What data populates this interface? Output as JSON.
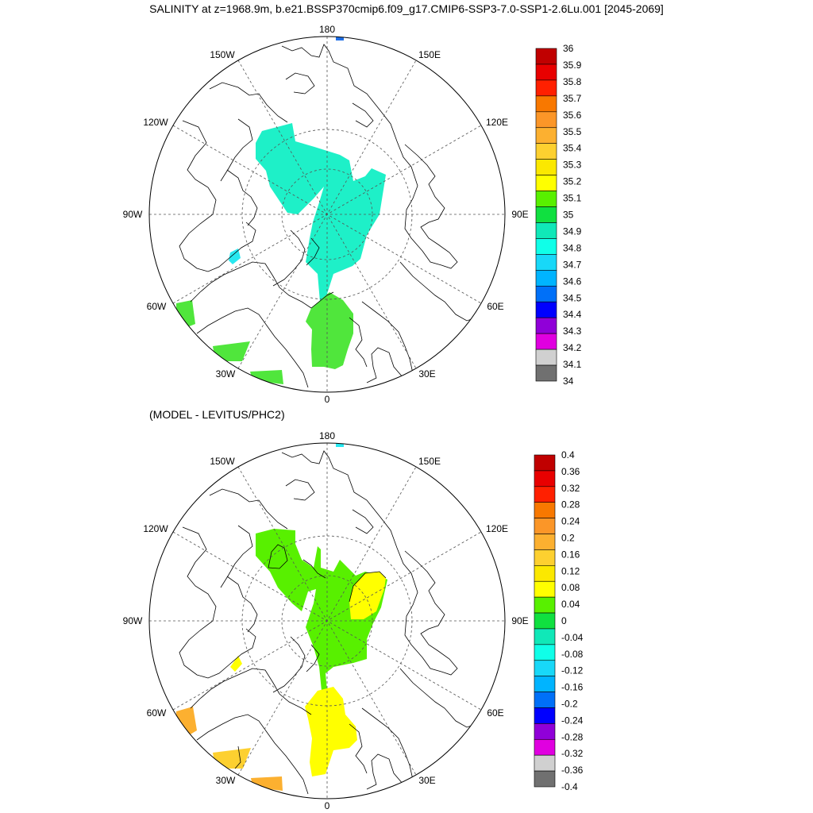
{
  "title": "SALINITY at z=1968.9m, b.e21.BSSP370cmip6.f09_g17.CMIP6-SSP3-7.0-SSP1-2.6Lu.001 [2045-2069]",
  "subtitle": "(MODEL - LEVITUS/PHC2)",
  "longitude_labels": {
    "lon_180": "180",
    "lon_150W": "150W",
    "lon_150E": "150E",
    "lon_120W": "120W",
    "lon_120E": "120E",
    "lon_90W": "90W",
    "lon_90E": "90E",
    "lon_60W": "60W",
    "lon_60E": "60E",
    "lon_30W": "30W",
    "lon_30E": "30E",
    "lon_0": "0"
  },
  "colorbar_top": {
    "labels": [
      "36",
      "35.9",
      "35.8",
      "35.7",
      "35.6",
      "35.5",
      "35.4",
      "35.3",
      "35.2",
      "35.1",
      "35",
      "34.9",
      "34.8",
      "34.7",
      "34.6",
      "34.5",
      "34.4",
      "34.3",
      "34.2",
      "34.1",
      "34"
    ],
    "colors": [
      "#c00000",
      "#e80000",
      "#ff2000",
      "#f87800",
      "#fb9628",
      "#fcb030",
      "#fdd030",
      "#fbe800",
      "#ffff00",
      "#58f000",
      "#10e040",
      "#10e8b8",
      "#10ffe8",
      "#18d8f8",
      "#00b4ff",
      "#0070f8",
      "#0000ff",
      "#9000d8",
      "#e000e0",
      "#d0d0d0",
      "#707070"
    ]
  },
  "colorbar_bottom": {
    "labels": [
      "0.4",
      "0.36",
      "0.32",
      "0.28",
      "0.24",
      "0.2",
      "0.16",
      "0.12",
      "0.08",
      "0.04",
      "0",
      "-0.04",
      "-0.08",
      "-0.12",
      "-0.16",
      "-0.2",
      "-0.24",
      "-0.28",
      "-0.32",
      "-0.36",
      "-0.4"
    ],
    "colors": [
      "#c00000",
      "#e80000",
      "#ff2000",
      "#f87800",
      "#fb9628",
      "#fcb030",
      "#fdd030",
      "#fbe800",
      "#ffff00",
      "#58f000",
      "#10e040",
      "#10e8b8",
      "#10ffe8",
      "#18d8f8",
      "#00b4ff",
      "#0070f8",
      "#0000ff",
      "#9000d8",
      "#e000e0",
      "#d0d0d0",
      "#707070"
    ]
  },
  "field_colors": {
    "top_cyan": "#1ef0c8",
    "top_green": "#50e63c",
    "top_light_cyan": "#28e8f0",
    "top_blue_patch": "#1e6ee6",
    "bottom_green": "#58f000",
    "bottom_yellow": "#ffff00",
    "bottom_orange": "#fcb030",
    "bottom_light_orange": "#fdd030",
    "bottom_cyan_patch": "#28e8f0"
  }
}
